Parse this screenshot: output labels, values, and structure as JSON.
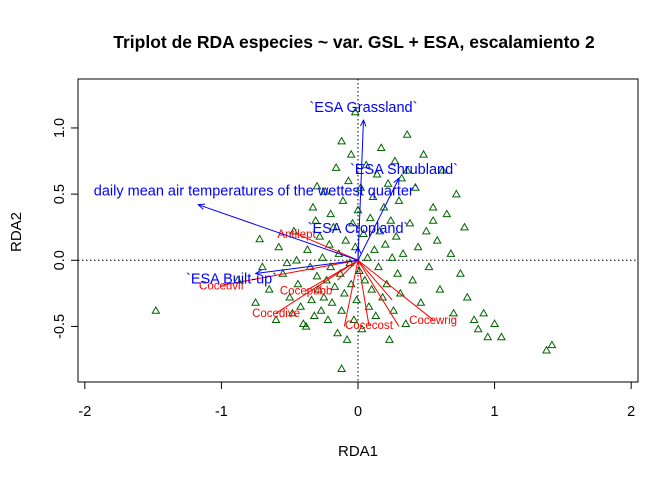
{
  "chart_data": {
    "type": "scatter",
    "title": "Triplot de RDA especies ~ var. GSL + ESA, escalamiento 2",
    "xlabel": "RDA1",
    "ylabel": "RDA2",
    "xlim": [
      -2.05,
      2.05
    ],
    "ylim": [
      -0.92,
      1.37
    ],
    "x_ticks": [
      -2,
      -1,
      0,
      1,
      2
    ],
    "y_ticks": [
      -0.5,
      0.0,
      0.5,
      1.0
    ],
    "x_tick_labels": [
      "-2",
      "-1",
      "0",
      "1",
      "2"
    ],
    "y_tick_labels": [
      "-0.5",
      "0.0",
      "0.5",
      "1.0"
    ],
    "grid": false,
    "reference_lines": {
      "x": 0,
      "y": 0,
      "style": "dotted"
    },
    "colors": {
      "sites": "#006400",
      "species": "#ff0000",
      "environment": "#0000ff",
      "text": "#000000"
    },
    "sites": {
      "marker": "triangle-open",
      "points": [
        [
          -1.48,
          -0.38
        ],
        [
          -0.88,
          -0.15
        ],
        [
          -0.75,
          -0.32
        ],
        [
          -0.72,
          0.16
        ],
        [
          -0.7,
          -0.05
        ],
        [
          -0.65,
          -0.22
        ],
        [
          -0.6,
          -0.45
        ],
        [
          -0.58,
          0.1
        ],
        [
          -0.55,
          -0.1
        ],
        [
          -0.52,
          -0.02
        ],
        [
          -0.5,
          -0.28
        ],
        [
          -0.48,
          -0.4
        ],
        [
          -0.47,
          0.22
        ],
        [
          -0.45,
          0.0
        ],
        [
          -0.44,
          -0.18
        ],
        [
          -0.42,
          -0.35
        ],
        [
          -0.4,
          -0.48
        ],
        [
          -0.38,
          -0.5
        ],
        [
          -0.37,
          0.08
        ],
        [
          -0.35,
          -0.05
        ],
        [
          -0.34,
          -0.3
        ],
        [
          -0.33,
          0.4
        ],
        [
          -0.32,
          -0.42
        ],
        [
          -0.31,
          0.3
        ],
        [
          -0.3,
          -0.12
        ],
        [
          -0.29,
          -0.22
        ],
        [
          -0.28,
          0.18
        ],
        [
          -0.27,
          -0.38
        ],
        [
          -0.26,
          0.02
        ],
        [
          -0.25,
          -0.28
        ],
        [
          -0.24,
          0.52
        ],
        [
          -0.23,
          -0.15
        ],
        [
          -0.22,
          -0.45
        ],
        [
          -0.21,
          0.12
        ],
        [
          -0.2,
          -0.05
        ],
        [
          -0.2,
          0.35
        ],
        [
          -0.19,
          -0.32
        ],
        [
          -0.18,
          0.25
        ],
        [
          -0.17,
          -0.2
        ],
        [
          -0.16,
          0.7
        ],
        [
          -0.15,
          -0.55
        ],
        [
          -0.14,
          0.05
        ],
        [
          -0.13,
          -0.1
        ],
        [
          -0.12,
          0.9
        ],
        [
          -0.12,
          -0.38
        ],
        [
          -0.11,
          0.45
        ],
        [
          -0.1,
          -0.25
        ],
        [
          -0.09,
          0.15
        ],
        [
          -0.08,
          -0.6
        ],
        [
          -0.07,
          0.6
        ],
        [
          -0.06,
          -0.02
        ],
        [
          -0.05,
          -0.18
        ],
        [
          -0.05,
          0.8
        ],
        [
          -0.04,
          0.28
        ],
        [
          -0.03,
          -0.45
        ],
        [
          -0.02,
          0.1
        ],
        [
          -0.02,
          1.12
        ],
        [
          -0.01,
          -0.3
        ],
        [
          0.0,
          0.38
        ],
        [
          0.01,
          -0.08
        ],
        [
          0.02,
          0.55
        ],
        [
          0.03,
          -0.52
        ],
        [
          0.04,
          0.2
        ],
        [
          0.05,
          -0.15
        ],
        [
          0.06,
          0.72
        ],
        [
          0.07,
          0.02
        ],
        [
          0.08,
          -0.35
        ],
        [
          0.09,
          0.32
        ],
        [
          0.1,
          -0.22
        ],
        [
          0.11,
          0.48
        ],
        [
          0.12,
          0.08
        ],
        [
          0.13,
          -0.42
        ],
        [
          0.14,
          0.65
        ],
        [
          0.15,
          -0.05
        ],
        [
          0.16,
          0.22
        ],
        [
          0.17,
          0.85
        ],
        [
          0.18,
          -0.28
        ],
        [
          0.19,
          0.4
        ],
        [
          0.2,
          0.12
        ],
        [
          0.21,
          -0.18
        ],
        [
          0.22,
          0.58
        ],
        [
          0.23,
          -0.6
        ],
        [
          0.24,
          0.3
        ],
        [
          0.25,
          0.02
        ],
        [
          0.26,
          -0.38
        ],
        [
          0.27,
          0.75
        ],
        [
          0.28,
          0.18
        ],
        [
          0.29,
          -0.1
        ],
        [
          0.3,
          0.45
        ],
        [
          0.31,
          -0.25
        ],
        [
          0.32,
          0.62
        ],
        [
          0.33,
          0.05
        ],
        [
          0.35,
          -0.48
        ],
        [
          0.36,
          0.95
        ],
        [
          0.38,
          0.28
        ],
        [
          0.4,
          -0.15
        ],
        [
          0.42,
          0.55
        ],
        [
          0.44,
          0.1
        ],
        [
          0.46,
          -0.32
        ],
        [
          0.48,
          0.8
        ],
        [
          0.5,
          0.22
        ],
        [
          0.52,
          -0.05
        ],
        [
          0.55,
          0.4
        ],
        [
          0.58,
          0.15
        ],
        [
          0.6,
          -0.22
        ],
        [
          0.62,
          0.68
        ],
        [
          0.65,
          0.35
        ],
        [
          0.68,
          0.05
        ],
        [
          0.7,
          -0.4
        ],
        [
          0.72,
          0.5
        ],
        [
          0.75,
          -0.1
        ],
        [
          0.78,
          0.25
        ],
        [
          0.8,
          -0.28
        ],
        [
          0.85,
          -0.45
        ],
        [
          0.88,
          -0.52
        ],
        [
          0.92,
          -0.4
        ],
        [
          0.95,
          -0.58
        ],
        [
          1.0,
          -0.48
        ],
        [
          1.05,
          -0.58
        ],
        [
          1.38,
          -0.68
        ],
        [
          1.42,
          -0.64
        ],
        [
          -0.12,
          -0.82
        ],
        [
          0.36,
          0.68
        ],
        [
          0.55,
          0.3
        ],
        [
          -0.3,
          0.56
        ]
      ]
    },
    "species": [
      {
        "label": "Antilept",
        "x": -0.45,
        "y": 0.2
      },
      {
        "label": "Coceuvif",
        "x": -1.0,
        "y": -0.19
      },
      {
        "label": "Cocepubb",
        "x": -0.38,
        "y": -0.23
      },
      {
        "label": "Cocedive",
        "x": -0.6,
        "y": -0.4
      },
      {
        "label": "Cocecost",
        "x": 0.08,
        "y": -0.49
      },
      {
        "label": "Cocewrig",
        "x": 0.55,
        "y": -0.45
      },
      {
        "label": "",
        "x": -0.1,
        "y": -0.5
      },
      {
        "label": "",
        "x": 0.25,
        "y": -0.3
      },
      {
        "label": "",
        "x": -0.15,
        "y": -0.15
      },
      {
        "label": "",
        "x": 0.3,
        "y": -0.5
      }
    ],
    "environment": [
      {
        "label": "`ESA Grassland`",
        "x": 0.04,
        "y": 1.06
      },
      {
        "label": "`ESA Shrubland`",
        "x": 0.3,
        "y": 0.62
      },
      {
        "label": "daily mean air temperatures of the wettest quarter`",
        "x": -1.17,
        "y": 0.42
      },
      {
        "label": "`ESA Cropland`",
        "x": 0.0,
        "y": 0.1
      },
      {
        "label": "`ESA Built-up`",
        "x": -0.75,
        "y": -0.1
      }
    ]
  }
}
